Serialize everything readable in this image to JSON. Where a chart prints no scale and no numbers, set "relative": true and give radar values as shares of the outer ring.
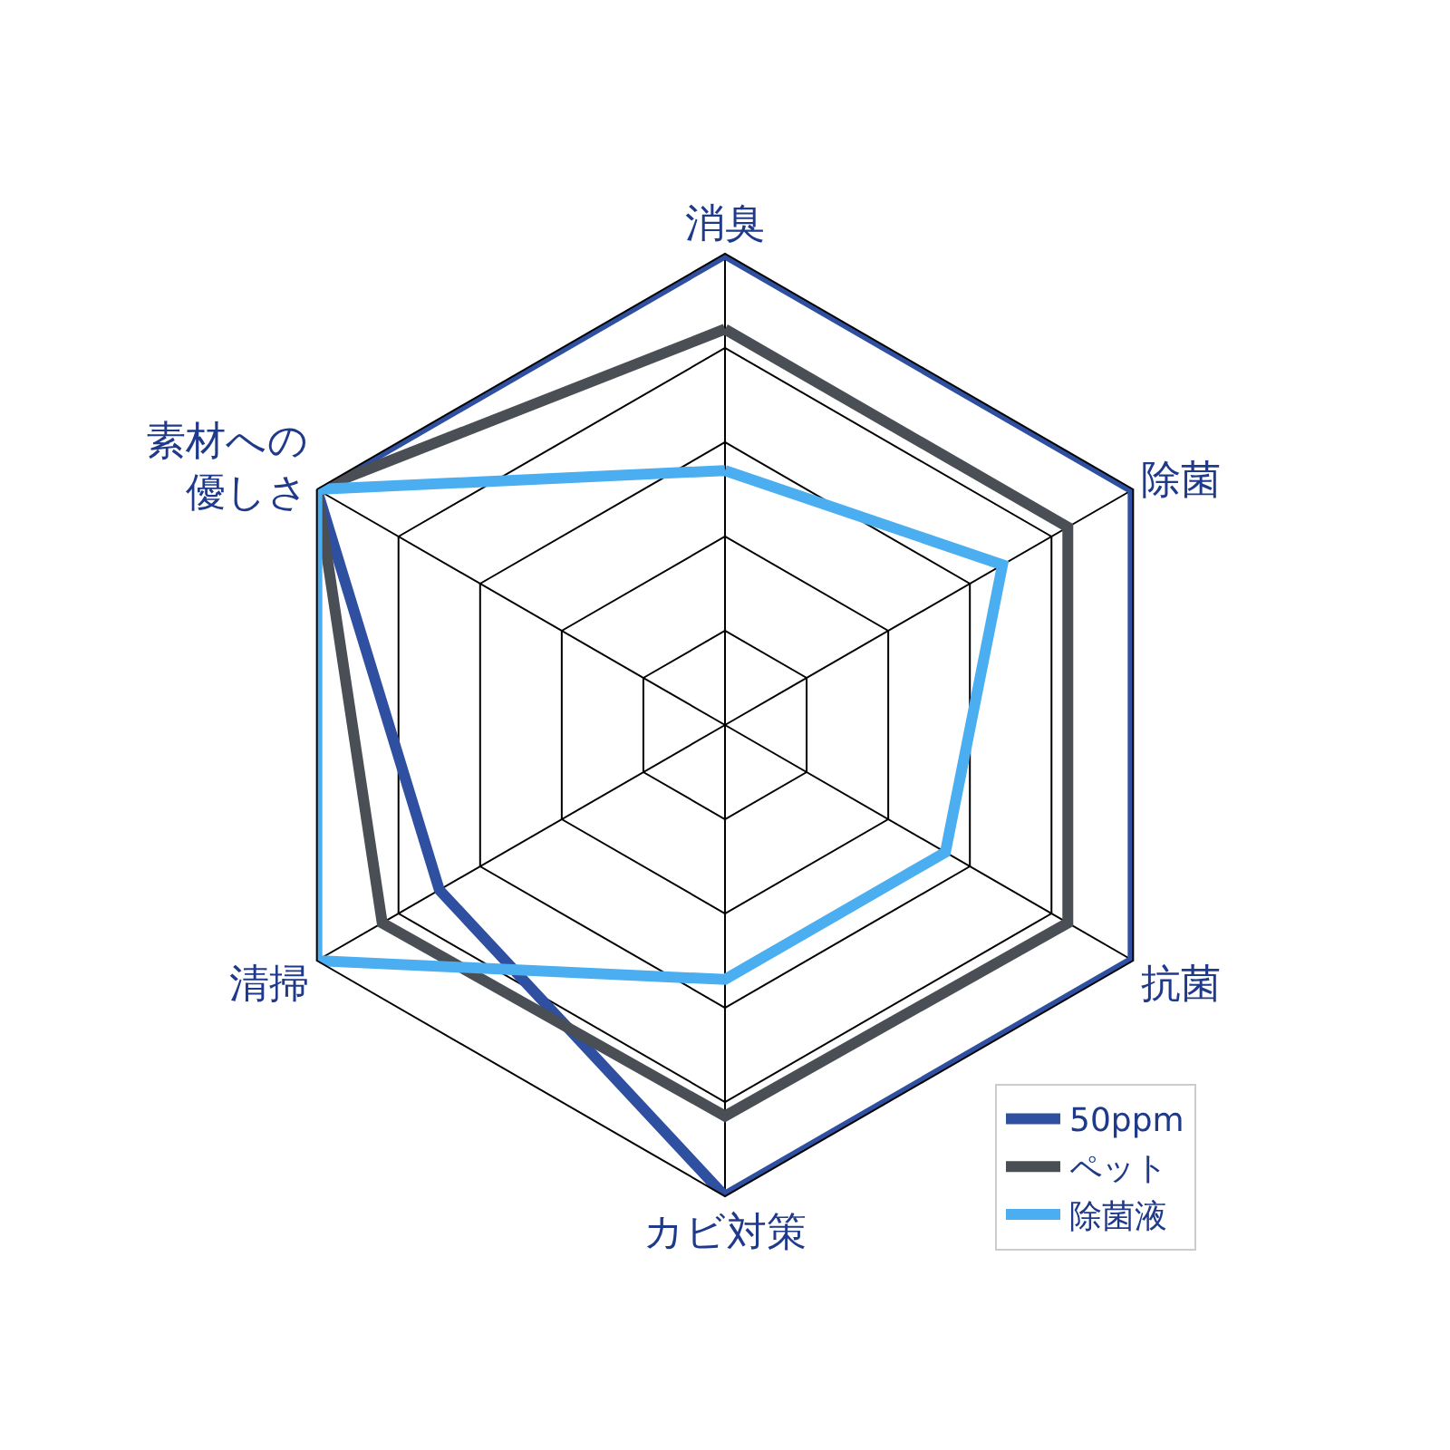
{
  "chart_data": {
    "type": "radar",
    "relative": true,
    "categories": [
      "消臭",
      "除菌",
      "抗菌",
      "カビ対策",
      "清掃",
      "素材への優しさ"
    ],
    "series": [
      {
        "name": "50ppm",
        "color": "#2f4fa0",
        "values": [
          1,
          1,
          1,
          1,
          0.7,
          1
        ]
      },
      {
        "name": "ペット",
        "color": "#4a4f55",
        "values": [
          0.84,
          0.84,
          0.84,
          0.83,
          0.84,
          1
        ]
      },
      {
        "name": "除菌液",
        "color": "#4aaef0",
        "values": [
          0.54,
          0.68,
          0.54,
          0.54,
          1,
          1
        ]
      }
    ],
    "grid": true,
    "legend": "bottom right",
    "marker": "none",
    "line_style": "solid"
  }
}
